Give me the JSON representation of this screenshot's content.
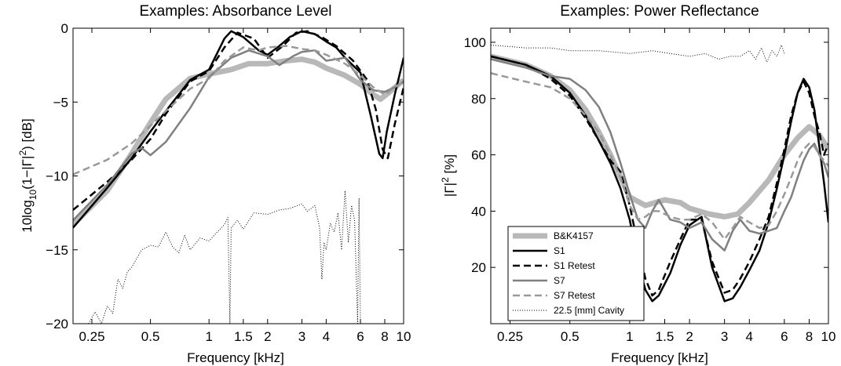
{
  "colors": {
    "gray_thick": "#b8b8b8",
    "black": "#000000",
    "gray": "#808080",
    "gray_light": "#999999"
  },
  "chart_data": [
    {
      "type": "line",
      "title": "Examples: Absorbance Level",
      "xlabel": "Frequency [kHz]",
      "ylabel": "10log10(1−|Γ|^2) [dB]",
      "ylabel_parts": {
        "a": "10log",
        "b": "10",
        "c": "(1−|Γ|",
        "d": "2",
        "e": ") [dB]"
      },
      "x_scale": "log",
      "xlim": [
        0.2,
        10
      ],
      "ylim": [
        -20,
        0
      ],
      "xticks": [
        0.25,
        0.5,
        1,
        1.5,
        2,
        3,
        4,
        6,
        8,
        10
      ],
      "xticklabels": [
        "0.25",
        "0.5",
        "1",
        "1.5",
        "2",
        "3",
        "4",
        "6",
        "8",
        "10"
      ],
      "yticks": [
        0,
        -5,
        -10,
        -15,
        -20
      ],
      "yticklabels": [
        "0",
        "−5",
        "−10",
        "−15",
        "−20"
      ],
      "grid": false,
      "legend": "none",
      "series": [
        {
          "style": "thick",
          "x": [
            0.2,
            0.3,
            0.4,
            0.5,
            0.6,
            0.8,
            1.0,
            1.3,
            1.6,
            2.0,
            2.5,
            3.0,
            3.5,
            4.0,
            5.0,
            6.0,
            7.0,
            7.6,
            8.5,
            10.0
          ],
          "y": [
            -13.3,
            -11,
            -8.5,
            -6.4,
            -4.8,
            -3.4,
            -3.1,
            -2.8,
            -2.4,
            -2.4,
            -2.2,
            -2.1,
            -2.3,
            -2.7,
            -3.2,
            -3.8,
            -4.5,
            -4.8,
            -4.3,
            -3.5
          ]
        },
        {
          "style": "solid_black",
          "x": [
            0.2,
            0.3,
            0.4,
            0.5,
            0.6,
            0.8,
            1.0,
            1.2,
            1.3,
            1.5,
            1.8,
            2.0,
            2.3,
            2.6,
            3.0,
            3.5,
            4.0,
            4.5,
            5.0,
            6.0,
            6.8,
            7.5,
            7.8,
            8.2,
            9.0,
            10.0
          ],
          "y": [
            -13.5,
            -10.8,
            -8.8,
            -7.0,
            -5.6,
            -3.5,
            -2.8,
            -0.7,
            -0.2,
            -0.6,
            -1.5,
            -1.8,
            -1.2,
            -0.6,
            -0.2,
            -0.4,
            -0.9,
            -1.3,
            -2.0,
            -3.0,
            -6.0,
            -8.5,
            -8.8,
            -7.0,
            -4.5,
            -2.0
          ]
        },
        {
          "style": "dashed_black",
          "x": [
            0.2,
            0.3,
            0.4,
            0.5,
            0.6,
            0.8,
            1.0,
            1.2,
            1.4,
            1.7,
            2.0,
            2.4,
            2.8,
            3.2,
            3.8,
            4.5,
            5.5,
            6.5,
            7.2,
            7.8,
            8.3,
            9.0,
            10.0
          ],
          "y": [
            -12.3,
            -10.4,
            -8.9,
            -7.5,
            -5.8,
            -3.6,
            -2.9,
            -1.3,
            -0.3,
            -0.7,
            -2.0,
            -1.2,
            -0.3,
            -0.2,
            -0.6,
            -1.2,
            -2.2,
            -3.5,
            -5.5,
            -8.2,
            -8.8,
            -6.5,
            -4.0
          ]
        },
        {
          "style": "solid_gray",
          "x": [
            0.2,
            0.3,
            0.4,
            0.45,
            0.5,
            0.6,
            0.8,
            1.0,
            1.3,
            1.6,
            2.0,
            2.3,
            2.7,
            3.0,
            3.5,
            4.0,
            5.0,
            6.0,
            7.0,
            8.0,
            9.0,
            10.0
          ],
          "y": [
            -13.0,
            -10.6,
            -8.5,
            -8.1,
            -8.6,
            -7.7,
            -5.4,
            -3.3,
            -2.0,
            -1.5,
            -1.9,
            -2.5,
            -1.9,
            -1.6,
            -1.5,
            -2.2,
            -2.0,
            -3.5,
            -4.2,
            -4.3,
            -4.0,
            -3.6
          ]
        },
        {
          "style": "dashed_gray",
          "x": [
            0.2,
            0.3,
            0.4,
            0.5,
            0.6,
            0.8,
            1.0,
            1.2,
            1.5,
            1.8,
            2.0,
            2.5,
            3.0,
            3.5,
            4.0,
            5.0,
            6.0,
            7.0,
            8.0,
            9.0,
            10.0
          ],
          "y": [
            -9.9,
            -8.9,
            -7.8,
            -6.6,
            -5.6,
            -4.1,
            -3.4,
            -2.2,
            -1.3,
            -1.5,
            -1.3,
            -1.2,
            -1.4,
            -1.5,
            -1.8,
            -2.4,
            -3.2,
            -4.0,
            -4.5,
            -4.0,
            -3.6
          ]
        },
        {
          "style": "dotted_black",
          "x": [
            0.24,
            0.26,
            0.28,
            0.3,
            0.32,
            0.34,
            0.36,
            0.38,
            0.4,
            0.45,
            0.5,
            0.55,
            0.6,
            0.65,
            0.7,
            0.75,
            0.8,
            0.9,
            1.0,
            1.1,
            1.2,
            1.25,
            1.28,
            1.3,
            1.4,
            1.5,
            1.7,
            2.0,
            2.3,
            2.6,
            3.0,
            3.2,
            3.5,
            3.7,
            3.8,
            3.9,
            4.0,
            4.2,
            4.4,
            4.6,
            4.8,
            5.0,
            5.2,
            5.4,
            5.6,
            5.8,
            5.9,
            6.0
          ],
          "y": [
            -20.0,
            -19.2,
            -20.0,
            -18.8,
            -19.3,
            -17.0,
            -17.6,
            -16.5,
            -16.2,
            -15.0,
            -14.7,
            -14.8,
            -13.8,
            -14.8,
            -15.2,
            -14.0,
            -15.0,
            -14.2,
            -14.4,
            -13.8,
            -13.3,
            -12.8,
            -20.0,
            -13.5,
            -13.0,
            -13.6,
            -12.5,
            -12.6,
            -12.3,
            -12.2,
            -11.9,
            -12.4,
            -12.0,
            -13.5,
            -17.0,
            -14.5,
            -15.0,
            -13.2,
            -13.8,
            -12.5,
            -15.0,
            -11.0,
            -14.5,
            -12.0,
            -13.0,
            -20.0,
            -11.5,
            -20.0
          ]
        }
      ]
    },
    {
      "type": "line",
      "title": "Examples: Power Reflectance",
      "xlabel": "Frequency [kHz]",
      "ylabel": "|Γ|^2 [%]",
      "ylabel_parts": {
        "a": "|Γ|",
        "b": "2",
        "c": " [%]"
      },
      "x_scale": "log",
      "xlim": [
        0.2,
        10
      ],
      "ylim": [
        0,
        105
      ],
      "xticks": [
        0.25,
        0.5,
        1,
        1.5,
        2,
        3,
        4,
        6,
        8,
        10
      ],
      "xticklabels": [
        "0.25",
        "0.5",
        "1",
        "1.5",
        "2",
        "3",
        "4",
        "6",
        "8",
        "10"
      ],
      "yticks": [
        20,
        40,
        60,
        80,
        100
      ],
      "yticklabels": [
        "20",
        "40",
        "60",
        "80",
        "100"
      ],
      "grid": false,
      "legend": "bottom-left",
      "series": [
        {
          "name": "B&K4157",
          "style": "thick",
          "x": [
            0.2,
            0.3,
            0.4,
            0.5,
            0.6,
            0.7,
            0.8,
            0.9,
            1.0,
            1.2,
            1.5,
            1.8,
            2.0,
            2.5,
            3.0,
            3.5,
            4.0,
            5.0,
            6.0,
            7.0,
            8.0,
            9.0,
            10.0
          ],
          "y": [
            95,
            92,
            88,
            83,
            76,
            68,
            60,
            52,
            45,
            42,
            44,
            43,
            41,
            39,
            38,
            39,
            43,
            51,
            60,
            66,
            70,
            67,
            62
          ]
        },
        {
          "name": "S1",
          "style": "solid_black",
          "x": [
            0.2,
            0.3,
            0.4,
            0.5,
            0.6,
            0.7,
            0.8,
            0.9,
            1.0,
            1.1,
            1.2,
            1.3,
            1.4,
            1.6,
            1.8,
            2.0,
            2.3,
            2.6,
            3.0,
            3.3,
            3.6,
            4.0,
            4.5,
            5.0,
            5.5,
            6.0,
            6.5,
            7.0,
            7.5,
            8.0,
            8.5,
            9.0,
            9.5,
            10.0
          ],
          "y": [
            95,
            92,
            88,
            82,
            74,
            65,
            57,
            48,
            37,
            22,
            12,
            8,
            10,
            18,
            28,
            35,
            38,
            20,
            8,
            9,
            13,
            19,
            26,
            36,
            48,
            60,
            72,
            82,
            87,
            84,
            76,
            63,
            50,
            36
          ]
        },
        {
          "name": "S1 Retest",
          "style": "dashed_black",
          "x": [
            0.2,
            0.3,
            0.4,
            0.5,
            0.6,
            0.7,
            0.8,
            0.9,
            1.0,
            1.1,
            1.2,
            1.3,
            1.4,
            1.6,
            1.8,
            2.0,
            2.3,
            2.6,
            3.0,
            3.3,
            3.6,
            4.0,
            4.5,
            5.0,
            5.5,
            6.0,
            6.5,
            7.0,
            7.5,
            8.0,
            8.5,
            9.0,
            9.5,
            10.0
          ],
          "y": [
            95,
            92,
            87,
            81,
            73,
            65,
            58,
            54,
            42,
            28,
            16,
            10,
            12,
            22,
            30,
            37,
            37,
            22,
            11,
            12,
            16,
            22,
            30,
            38,
            50,
            62,
            74,
            82,
            86,
            82,
            74,
            68,
            60,
            64
          ]
        },
        {
          "name": "S7",
          "style": "solid_gray",
          "x": [
            0.2,
            0.3,
            0.4,
            0.5,
            0.6,
            0.7,
            0.8,
            0.9,
            1.0,
            1.1,
            1.2,
            1.3,
            1.4,
            1.6,
            1.8,
            2.0,
            2.3,
            2.6,
            3.0,
            3.3,
            3.6,
            4.0,
            4.5,
            5.0,
            5.5,
            6.0,
            6.5,
            7.0,
            7.5,
            8.0,
            8.5,
            9.0,
            9.5,
            10.0
          ],
          "y": [
            94,
            91,
            88,
            87,
            83,
            77,
            68,
            57,
            46,
            37,
            34,
            40,
            44,
            37,
            36,
            34,
            36,
            30,
            26,
            33,
            37,
            33,
            32,
            33,
            34,
            40,
            45,
            52,
            58,
            62,
            64,
            60,
            57,
            52
          ]
        },
        {
          "name": "S7 Retest",
          "style": "dashed_gray",
          "x": [
            0.2,
            0.3,
            0.4,
            0.5,
            0.6,
            0.7,
            0.8,
            0.9,
            1.0,
            1.1,
            1.2,
            1.3,
            1.4,
            1.6,
            1.8,
            2.0,
            2.3,
            2.6,
            3.0,
            3.3,
            3.6,
            4.0,
            4.5,
            5.0,
            5.5,
            6.0,
            6.5,
            7.0,
            7.5,
            8.0,
            8.5,
            9.0,
            9.5,
            10.0
          ],
          "y": [
            89,
            86,
            84,
            80,
            74,
            68,
            60,
            52,
            42,
            37,
            38,
            40,
            40,
            38,
            37,
            37,
            39,
            36,
            30,
            34,
            38,
            36,
            34,
            35,
            40,
            46,
            52,
            58,
            62,
            64,
            63,
            60,
            58,
            56
          ]
        },
        {
          "name": "22.5 [mm] Cavity",
          "style": "dotted_black",
          "x": [
            0.2,
            0.3,
            0.4,
            0.5,
            0.7,
            1.0,
            1.3,
            1.6,
            2.0,
            2.4,
            2.8,
            3.2,
            3.6,
            4.0,
            4.3,
            4.6,
            4.9,
            5.2,
            5.5,
            5.8,
            6.0
          ],
          "y": [
            99,
            98,
            98,
            97,
            97,
            96,
            97,
            96,
            95,
            96,
            94,
            95,
            95,
            97,
            94,
            98,
            93,
            97,
            95,
            99,
            96
          ]
        }
      ]
    }
  ]
}
